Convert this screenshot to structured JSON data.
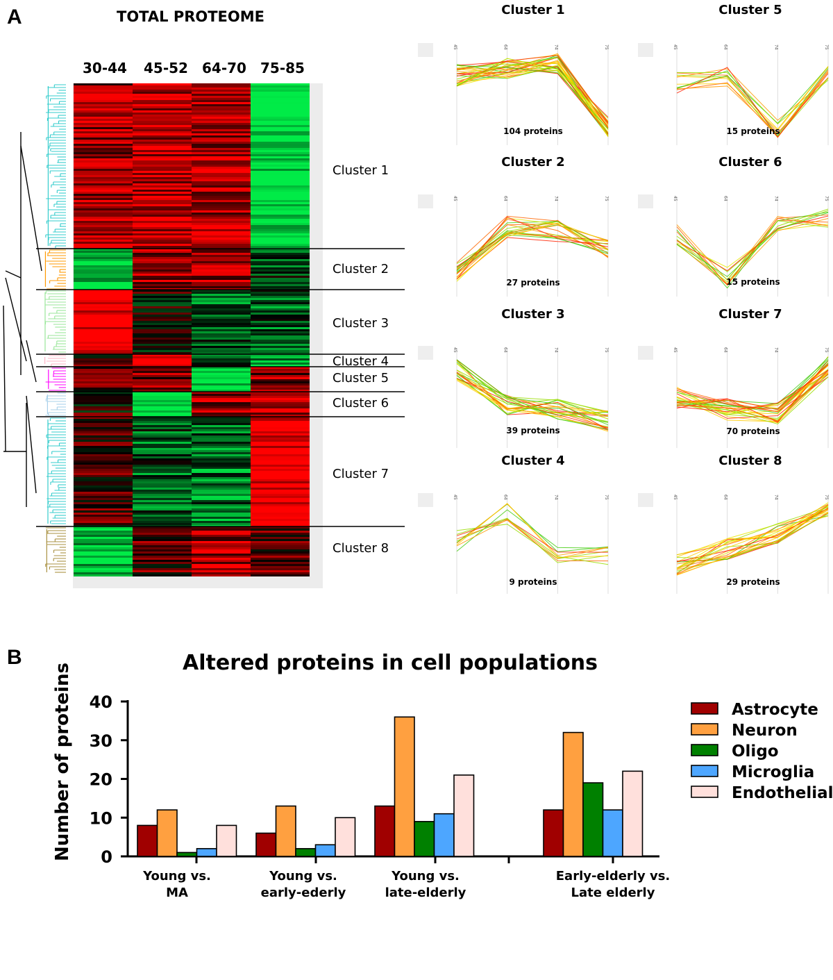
{
  "panel_a": {
    "letter": "A",
    "title": "TOTAL PROTEOME",
    "age_groups": [
      "30-44",
      "45-52",
      "64-70",
      "75-85"
    ],
    "cluster_labels": [
      "Cluster 1",
      "Cluster 2",
      "Cluster 3",
      "Cluster 4",
      "Cluster 5",
      "Cluster 6",
      "Cluster 7",
      "Cluster 8"
    ],
    "mini_axis_labels": [
      "45",
      "64",
      "74",
      "75"
    ],
    "profiles": [
      {
        "title": "Cluster 1",
        "count": "104 proteins"
      },
      {
        "title": "Cluster 5",
        "count": "15 proteins"
      },
      {
        "title": "Cluster 2",
        "count": "27 proteins"
      },
      {
        "title": "Cluster 6",
        "count": "15 proteins"
      },
      {
        "title": "Cluster 3",
        "count": "39 proteins"
      },
      {
        "title": "Cluster 7",
        "count": "70 proteins"
      },
      {
        "title": "Cluster 4",
        "count": "9 proteins"
      },
      {
        "title": "Cluster 8",
        "count": "29 proteins"
      }
    ],
    "colors": {
      "up": "#e00000",
      "down": "#00e050",
      "mid": "#000000"
    }
  },
  "panel_b": {
    "letter": "B"
  },
  "chart_data": {
    "type": "bar",
    "title": "Altered proteins in cell populations",
    "ylabel": "Number of proteins",
    "xlabel": "",
    "ylim": [
      0,
      40
    ],
    "yticks": [
      0,
      10,
      20,
      30,
      40
    ],
    "categories": [
      "Young vs.\nMA",
      "Young vs.\nearly-ederly",
      "Young vs.\nlate-elderly",
      "Early-elderly vs.\nLate elderly"
    ],
    "legend_position": "right",
    "series": [
      {
        "name": "Astrocyte",
        "color": "#a00000",
        "values": [
          8,
          6,
          13,
          12
        ]
      },
      {
        "name": "Neuron",
        "color": "#ffa040",
        "values": [
          12,
          13,
          36,
          32
        ]
      },
      {
        "name": "Oligo",
        "color": "#008000",
        "values": [
          1,
          2,
          9,
          19
        ]
      },
      {
        "name": "Microglia",
        "color": "#4da6ff",
        "values": [
          2,
          3,
          11,
          12
        ]
      },
      {
        "name": "Endothelial",
        "color": "#ffe0dc",
        "values": [
          8,
          10,
          21,
          22
        ]
      }
    ]
  }
}
